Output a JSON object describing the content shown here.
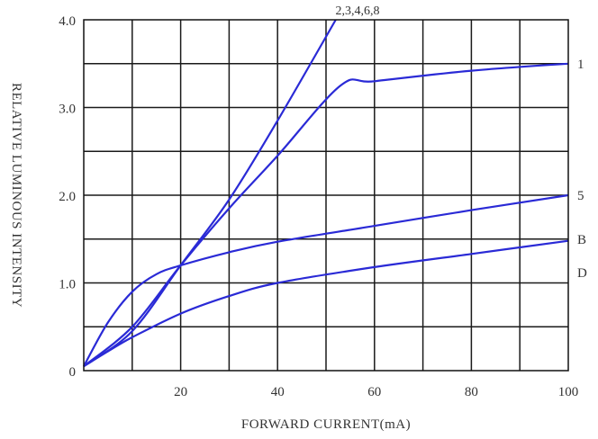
{
  "chart_data": {
    "type": "line",
    "title": "",
    "top_annotation": "2,3,4,6,8",
    "xlabel": "FORWARD CURRENT(mA)",
    "ylabel": "RELATIVE LUMINOUS INTENSITY",
    "xlim": [
      0,
      100
    ],
    "ylim": [
      0,
      4.0
    ],
    "x_ticks": [
      20,
      40,
      60,
      80,
      100
    ],
    "x_tick_labels": [
      "20",
      "40",
      "60",
      "80",
      "100"
    ],
    "y_ticks": [
      0,
      1.0,
      2.0,
      3.0,
      4.0
    ],
    "y_tick_labels": [
      "0",
      "1.0",
      "2.0",
      "3.0",
      "4.0"
    ],
    "x_gridlines": [
      10,
      20,
      30,
      40,
      50,
      60,
      70,
      80,
      90
    ],
    "y_gridlines": [
      0.5,
      1.0,
      1.5,
      2.0,
      2.5,
      3.0,
      3.5
    ],
    "grid": true,
    "line_color": "#2a2ad6",
    "series": [
      {
        "name": "",
        "points": [
          [
            0,
            0.05
          ],
          [
            10,
            0.45
          ],
          [
            20,
            1.2
          ],
          [
            30,
            1.95
          ],
          [
            40,
            2.85
          ],
          [
            52,
            4.0
          ]
        ]
      },
      {
        "name": "1",
        "points": [
          [
            0,
            0.05
          ],
          [
            10,
            0.5
          ],
          [
            20,
            1.2
          ],
          [
            30,
            1.85
          ],
          [
            40,
            2.45
          ],
          [
            53,
            3.25
          ],
          [
            60,
            3.3
          ],
          [
            80,
            3.42
          ],
          [
            100,
            3.5
          ]
        ]
      },
      {
        "name": "5",
        "points": [
          [
            0,
            0.05
          ],
          [
            5,
            0.55
          ],
          [
            10,
            0.9
          ],
          [
            15,
            1.1
          ],
          [
            20,
            1.2
          ],
          [
            30,
            1.35
          ],
          [
            40,
            1.47
          ],
          [
            60,
            1.65
          ],
          [
            80,
            1.83
          ],
          [
            100,
            2.0
          ]
        ]
      },
      {
        "name": "B",
        "points": [
          [
            0,
            0.05
          ],
          [
            5,
            0.22
          ],
          [
            10,
            0.38
          ],
          [
            20,
            0.65
          ],
          [
            30,
            0.85
          ],
          [
            40,
            1.0
          ],
          [
            60,
            1.18
          ],
          [
            80,
            1.33
          ],
          [
            100,
            1.48
          ]
        ]
      },
      {
        "name": "D",
        "points": []
      }
    ]
  }
}
